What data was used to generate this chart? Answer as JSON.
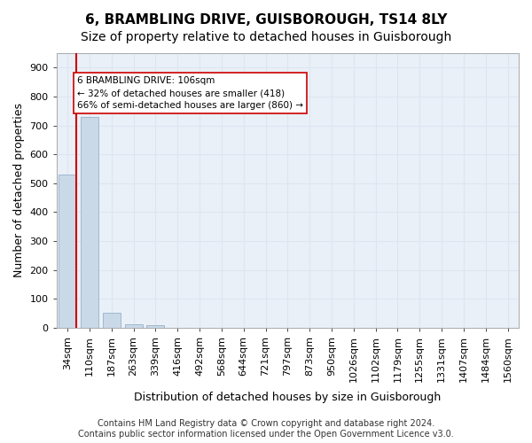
{
  "title": "6, BRAMBLING DRIVE, GUISBOROUGH, TS14 8LY",
  "subtitle": "Size of property relative to detached houses in Guisborough",
  "xlabel": "Distribution of detached houses by size in Guisborough",
  "ylabel": "Number of detached properties",
  "bar_values": [
    530,
    728,
    50,
    10,
    8,
    0,
    0,
    0,
    0,
    0,
    0,
    0,
    0,
    0,
    0,
    0,
    0,
    0,
    0,
    0,
    0
  ],
  "bar_labels": [
    "34sqm",
    "110sqm",
    "187sqm",
    "263sqm",
    "339sqm",
    "416sqm",
    "492sqm",
    "568sqm",
    "644sqm",
    "721sqm",
    "797sqm",
    "873sqm",
    "950sqm",
    "1026sqm",
    "1102sqm",
    "1179sqm",
    "1255sqm",
    "1331sqm",
    "1407sqm",
    "1484sqm",
    "1560sqm"
  ],
  "bar_color": "#c9d9e8",
  "bar_edge_color": "#a0b8d0",
  "grid_color": "#dce6f0",
  "background_color": "#eaf0f8",
  "vline_color": "#cc0000",
  "annotation_text": "6 BRAMBLING DRIVE: 106sqm\n← 32% of detached houses are smaller (418)\n66% of semi-detached houses are larger (860) →",
  "annotation_box_color": "#ffffff",
  "annotation_box_edge": "#cc0000",
  "ylim": [
    0,
    950
  ],
  "yticks": [
    0,
    100,
    200,
    300,
    400,
    500,
    600,
    700,
    800,
    900
  ],
  "footer": "Contains HM Land Registry data © Crown copyright and database right 2024.\nContains public sector information licensed under the Open Government Licence v3.0.",
  "title_fontsize": 11,
  "subtitle_fontsize": 10,
  "xlabel_fontsize": 9,
  "ylabel_fontsize": 9,
  "tick_fontsize": 8,
  "footer_fontsize": 7
}
